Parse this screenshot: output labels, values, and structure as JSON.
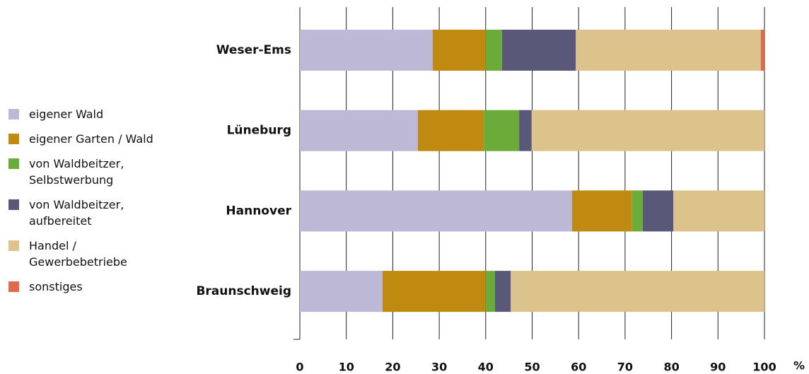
{
  "chart_data": {
    "type": "stacked-barh",
    "categories": [
      "Weser-Ems",
      "Lüneburg",
      "Hannover",
      "Braunschweig"
    ],
    "series": [
      {
        "name": "eigener Wald",
        "color": "#bcb8d6",
        "values": [
          28.6,
          25.4,
          58.6,
          17.8
        ]
      },
      {
        "name": "eigener Garten / Wald",
        "color": "#c0890f",
        "values": [
          11.4,
          14.2,
          12.9,
          22.2
        ]
      },
      {
        "name": "von Waldbeitzer, Selbstwerbung",
        "color": "#6aab3a",
        "values": [
          3.5,
          7.6,
          2.3,
          2.0
        ]
      },
      {
        "name": "von Waldbeitzer, aufbereitet",
        "color": "#5a5878",
        "values": [
          15.9,
          2.7,
          6.6,
          3.4
        ]
      },
      {
        "name": "Handel / Gewerbebetriebe",
        "color": "#dcc38b",
        "values": [
          39.8,
          50.1,
          19.6,
          54.6
        ]
      },
      {
        "name": "sonstiges",
        "color": "#e06a4c",
        "values": [
          0.8,
          0,
          0,
          0
        ]
      }
    ],
    "x_unit": "%",
    "xlim": [
      0,
      100
    ],
    "xticks": [
      0,
      10,
      20,
      30,
      40,
      50,
      60,
      70,
      80,
      90,
      100
    ],
    "grid": true,
    "legend": "left"
  }
}
